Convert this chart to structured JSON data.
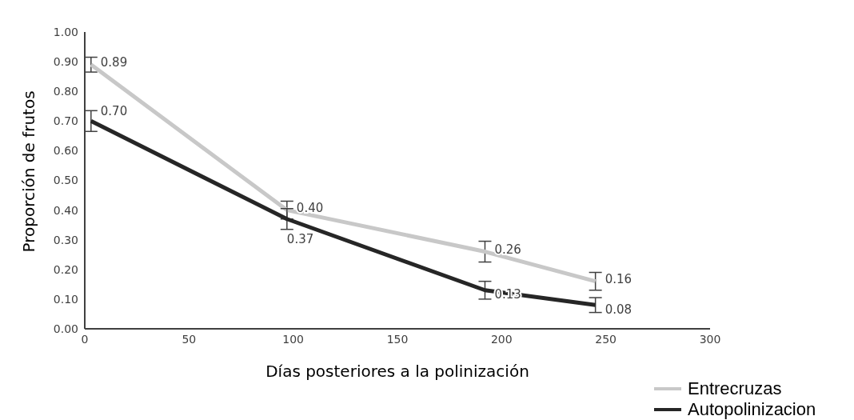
{
  "chart_data": {
    "type": "line",
    "xlabel": "Días posteriores a la polinización",
    "ylabel": "Proporción de frutos",
    "x": [
      3,
      97,
      192,
      245
    ],
    "series": [
      {
        "name": "Entrecruzas",
        "color": "#c8c8c8",
        "values": [
          0.89,
          0.4,
          0.26,
          0.16
        ],
        "errors": [
          0.025,
          0.03,
          0.035,
          0.03
        ],
        "value_labels": [
          "0.89",
          "0.40",
          "0.26",
          "0.16"
        ]
      },
      {
        "name": "Autopolinizacion",
        "color": "#262626",
        "values": [
          0.7,
          0.37,
          0.13,
          0.08
        ],
        "errors": [
          0.035,
          0.035,
          0.03,
          0.025
        ],
        "value_labels": [
          "0.70",
          "0.37",
          "0.13",
          "0.08"
        ]
      }
    ],
    "xlim": [
      0,
      300
    ],
    "xticks": [
      0,
      50,
      100,
      150,
      200,
      250,
      300
    ],
    "ylim": [
      0,
      1
    ],
    "yticks": [
      {
        "value": 0,
        "label": "0.00"
      },
      {
        "value": 0.1,
        "label": "0.10"
      },
      {
        "value": 0.2,
        "label": "0.20"
      },
      {
        "value": 0.3,
        "label": "0.30"
      },
      {
        "value": 0.4,
        "label": "0.40"
      },
      {
        "value": 0.5,
        "label": "0.50"
      },
      {
        "value": 0.6,
        "label": "0.60"
      },
      {
        "value": 0.7,
        "label": "0.70"
      },
      {
        "value": 0.8,
        "label": "0.80"
      },
      {
        "value": 0.9,
        "label": "0.90"
      },
      {
        "value": 1,
        "label": "1.00"
      }
    ],
    "grid": false,
    "legend": "bottom right",
    "marker": "none",
    "line_style": "solid"
  }
}
